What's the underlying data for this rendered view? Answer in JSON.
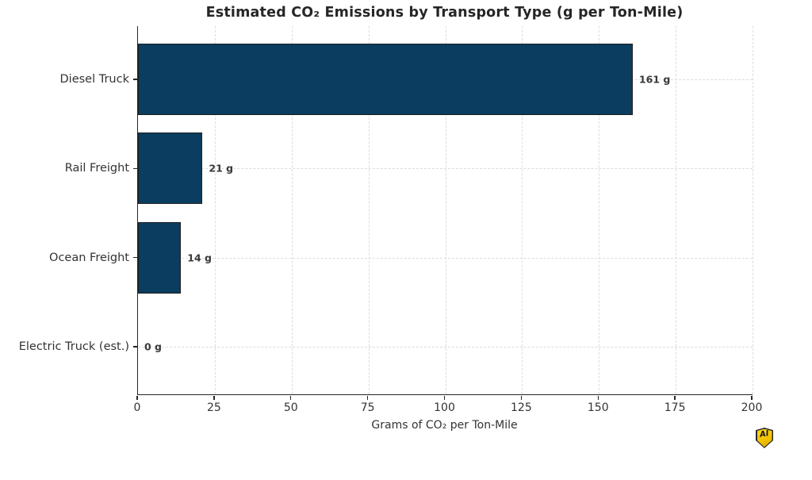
{
  "chart_data": {
    "type": "bar",
    "orientation": "horizontal",
    "title": "Estimated CO₂ Emissions by Transport Type (g per Ton-Mile)",
    "categories": [
      "Diesel Truck",
      "Rail Freight",
      "Ocean Freight",
      "Electric Truck (est.)"
    ],
    "values": [
      161,
      21,
      14,
      0
    ],
    "value_labels": [
      "161 g",
      "21 g",
      "14 g",
      "0 g"
    ],
    "xlabel": "Grams of CO₂ per Ton-Mile",
    "xlim": [
      0,
      200
    ],
    "x_ticks": [
      0,
      25,
      50,
      75,
      100,
      125,
      150,
      175,
      200
    ],
    "grid": true,
    "grid_style": "dashed",
    "legend_position": "none",
    "bar_color": "#0a3d5f",
    "bar_edge_color": "#1f1f1f",
    "grid_color": "#dcdcdc",
    "text_color": "#333333",
    "spine_color": "#262626"
  },
  "badge": {
    "label": "AI",
    "fill_color": "#f2c200",
    "outline_color": "#2a2a2a"
  }
}
